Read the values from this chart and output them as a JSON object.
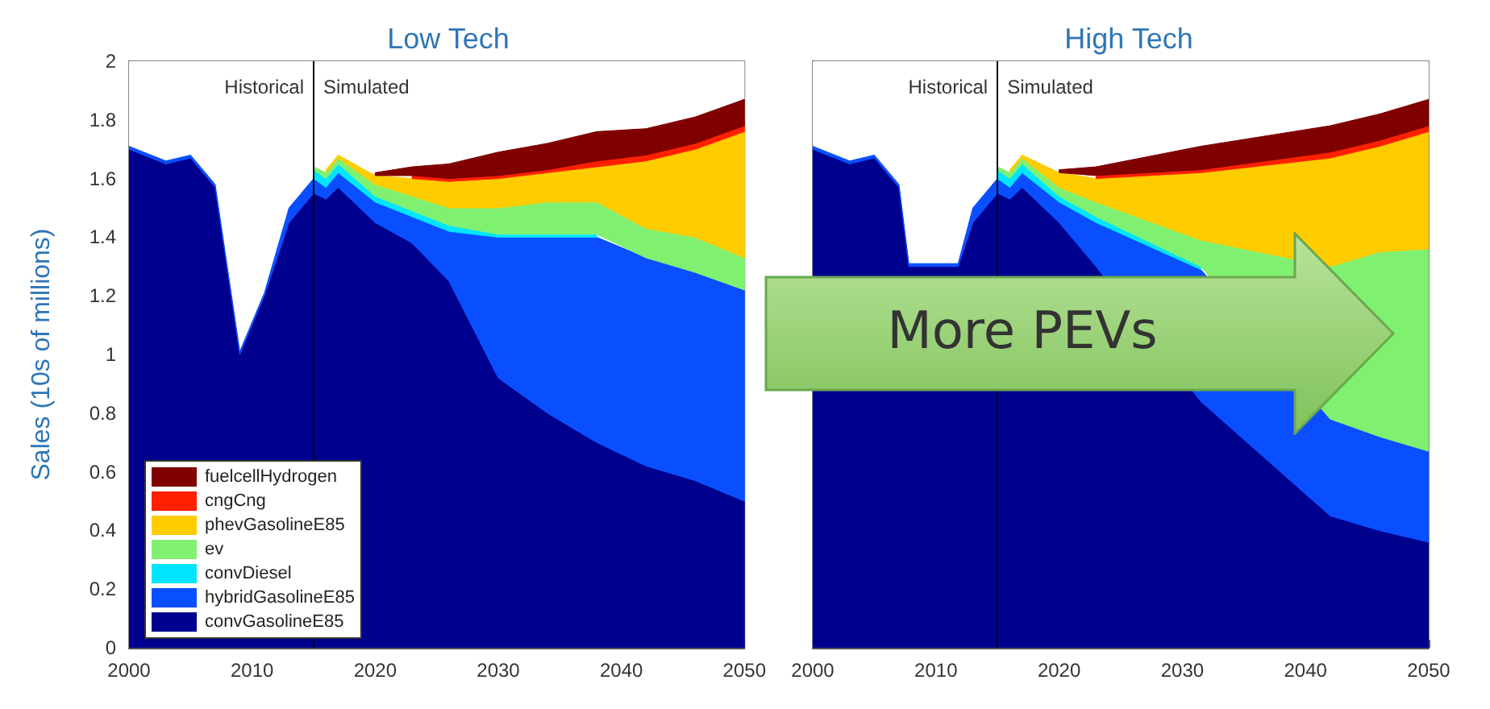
{
  "chart_data": [
    {
      "type": "area",
      "title": "Low Tech",
      "ylabel": "Sales (10s of millions)",
      "stacked": true,
      "x": [
        2000,
        2003,
        2005,
        2007,
        2009,
        2011,
        2013,
        2015,
        2016,
        2017,
        2020,
        2023,
        2026,
        2030,
        2034,
        2038,
        2042,
        2046,
        2050
      ],
      "series": [
        {
          "name": "convGasolineE85",
          "color": "#00008f",
          "values": [
            1.7,
            1.65,
            1.67,
            1.57,
            1.0,
            1.2,
            1.45,
            1.55,
            1.53,
            1.57,
            1.45,
            1.38,
            1.25,
            0.92,
            0.8,
            0.7,
            0.62,
            0.57,
            0.5
          ]
        },
        {
          "name": "hybridGasolineE85",
          "color": "#0a4fff",
          "values": [
            0.01,
            0.01,
            0.01,
            0.01,
            0.01,
            0.01,
            0.05,
            0.05,
            0.04,
            0.05,
            0.07,
            0.09,
            0.17,
            0.48,
            0.6,
            0.7,
            0.71,
            0.71,
            0.72
          ]
        },
        {
          "name": "convDiesel",
          "color": "#00e5ff",
          "values": [
            null,
            null,
            null,
            null,
            null,
            null,
            null,
            0.03,
            0.03,
            0.03,
            0.02,
            0.02,
            0.02,
            0.01,
            0.01,
            0.01,
            null,
            null,
            null
          ]
        },
        {
          "name": "ev",
          "color": "#80f070",
          "values": [
            null,
            null,
            null,
            null,
            null,
            null,
            null,
            0.01,
            0.02,
            0.02,
            0.04,
            0.05,
            0.06,
            0.09,
            0.11,
            0.11,
            0.1,
            0.12,
            0.11
          ]
        },
        {
          "name": "phevGasolineE85",
          "color": "#ffcc00",
          "values": [
            null,
            null,
            null,
            null,
            null,
            null,
            null,
            null,
            0.01,
            0.01,
            0.03,
            0.06,
            0.09,
            0.1,
            0.1,
            0.12,
            0.23,
            0.3,
            0.43
          ]
        },
        {
          "name": "cngCng",
          "color": "#ff2000",
          "values": [
            null,
            null,
            null,
            null,
            null,
            null,
            null,
            null,
            null,
            null,
            null,
            0.01,
            0.01,
            0.01,
            0.01,
            0.02,
            0.02,
            0.02,
            0.02
          ]
        },
        {
          "name": "fuelcellHydrogen",
          "color": "#800000",
          "values": [
            null,
            null,
            null,
            null,
            null,
            null,
            null,
            null,
            null,
            null,
            0.01,
            0.03,
            0.05,
            0.08,
            0.09,
            0.1,
            0.09,
            0.09,
            0.09
          ]
        }
      ],
      "xlim": [
        2000,
        2050
      ],
      "xticks": [
        2000,
        2010,
        2020,
        2030,
        2040,
        2050
      ],
      "ylim": [
        0,
        2
      ],
      "yticks": [
        0,
        0.2,
        0.4,
        0.6,
        0.8,
        1,
        1.2,
        1.4,
        1.6,
        1.8,
        2
      ],
      "ref_lines": [
        {
          "axis": "x",
          "value": 2015
        }
      ],
      "bands": [
        {
          "axis": "x",
          "from": 2000,
          "to": 2015,
          "label": "Historical",
          "color": "#ffffff"
        },
        {
          "axis": "x",
          "from": 2015,
          "to": 2050,
          "label": "Simulated",
          "color": "#ffffff"
        }
      ],
      "legend": "bottom left",
      "grid": false
    },
    {
      "type": "area",
      "title": "High Tech",
      "stacked": true,
      "x": [
        2000,
        2003,
        2005,
        2007,
        2007.8,
        2011.8,
        2013,
        2015,
        2016,
        2017,
        2020,
        2023,
        2031.5,
        2042,
        2046,
        2050
      ],
      "series": [
        {
          "color": "#00008f",
          "values": [
            1.7,
            1.65,
            1.67,
            1.57,
            1.3,
            1.3,
            1.45,
            1.55,
            1.53,
            1.57,
            1.45,
            1.3,
            0.84,
            0.45,
            0.4,
            0.36
          ]
        },
        {
          "color": "#0a4fff",
          "values": [
            0.01,
            0.01,
            0.01,
            0.01,
            0.01,
            0.01,
            0.05,
            0.05,
            0.04,
            0.05,
            0.07,
            0.15,
            0.45,
            0.33,
            0.32,
            0.31
          ]
        },
        {
          "color": "#00e5ff",
          "values": [
            null,
            null,
            null,
            null,
            null,
            null,
            null,
            0.03,
            0.03,
            0.03,
            0.02,
            0.02,
            0.01,
            null,
            null,
            null
          ]
        },
        {
          "color": "#80f070",
          "values": [
            null,
            null,
            null,
            null,
            null,
            null,
            null,
            0.01,
            0.02,
            0.02,
            0.03,
            0.05,
            0.09,
            0.52,
            0.63,
            0.69
          ]
        },
        {
          "color": "#ffcc00",
          "values": [
            null,
            null,
            null,
            null,
            null,
            null,
            null,
            null,
            0.01,
            0.01,
            0.05,
            0.08,
            0.23,
            0.37,
            0.36,
            0.4
          ]
        },
        {
          "color": "#ff2000",
          "values": [
            null,
            null,
            null,
            null,
            null,
            null,
            null,
            null,
            null,
            null,
            null,
            0.01,
            0.01,
            0.02,
            0.02,
            0.02
          ]
        },
        {
          "color": "#800000",
          "values": [
            null,
            null,
            null,
            null,
            null,
            null,
            null,
            null,
            null,
            null,
            0.01,
            0.03,
            0.08,
            0.09,
            0.09,
            0.09
          ]
        }
      ],
      "xlim": [
        2000,
        2050
      ],
      "xticks": [
        2000,
        2010,
        2020,
        2030,
        2040,
        2050
      ],
      "ylim": [
        0,
        2
      ],
      "yticks": [
        0,
        0.2,
        0.4,
        0.6,
        0.8,
        1,
        1.2,
        1.4,
        1.6,
        1.8,
        2
      ],
      "tick_labels": "x",
      "ref_lines": [
        {
          "axis": "x",
          "value": 2015
        }
      ],
      "bands": [
        {
          "axis": "x",
          "from": 2000,
          "to": 2015,
          "label": "Historical",
          "color": "#ffffff"
        },
        {
          "axis": "x",
          "from": 2015,
          "to": 2050,
          "label": "Simulated",
          "color": "#ffffff"
        }
      ],
      "annotations": [
        "More PEVs"
      ],
      "legend": false,
      "grid": false
    }
  ]
}
